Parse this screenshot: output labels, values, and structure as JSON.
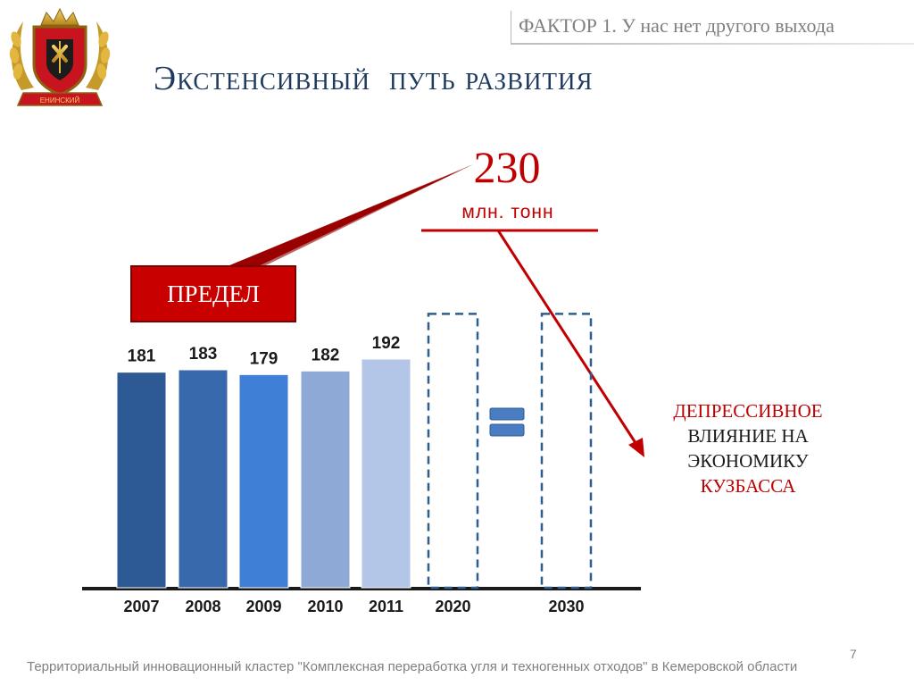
{
  "header": {
    "factor_label": "ФАКТОР 1. У нас нет другого выхода",
    "title": "Экстенсивный  путь развития"
  },
  "emblem": {
    "description_icon": "coat-of-arms-kemerovo-icon",
    "ribbon_text": "ЕНИНСКИЙ"
  },
  "callouts": {
    "limit_value": "230",
    "limit_unit": "млн. тонн",
    "limit_label": "ПРЕДЕЛ",
    "effect_lines": [
      "ДЕПРЕССИВНОЕ",
      "ВЛИЯНИЕ НА",
      "ЭКОНОМИКУ",
      "КУЗБАССА"
    ]
  },
  "chart_data": {
    "type": "bar",
    "categories": [
      "2007",
      "2008",
      "2009",
      "2010",
      "2011",
      "2020",
      "2030"
    ],
    "values": [
      181,
      183,
      179,
      182,
      192,
      230,
      230
    ],
    "forecast_categories": [
      "2020",
      "2030"
    ],
    "value_labels": [
      "181",
      "183",
      "179",
      "182",
      "192",
      "",
      ""
    ],
    "colors": [
      "#2d5a94",
      "#3869ac",
      "#3f7fd6",
      "#8fa9d6",
      "#b3c6e8"
    ],
    "limit_color": "#c00000",
    "forecast_border_color": "#2e5d90",
    "equals_color": "#4a7cc4",
    "title": "",
    "xlabel": "",
    "ylabel": "",
    "grid": false,
    "legend": "none"
  },
  "footer": {
    "text": "Территориальный инновационный кластер \"Комплексная переработка угля и техногенных отходов\" в Кемеровской области",
    "page_number": "7"
  }
}
